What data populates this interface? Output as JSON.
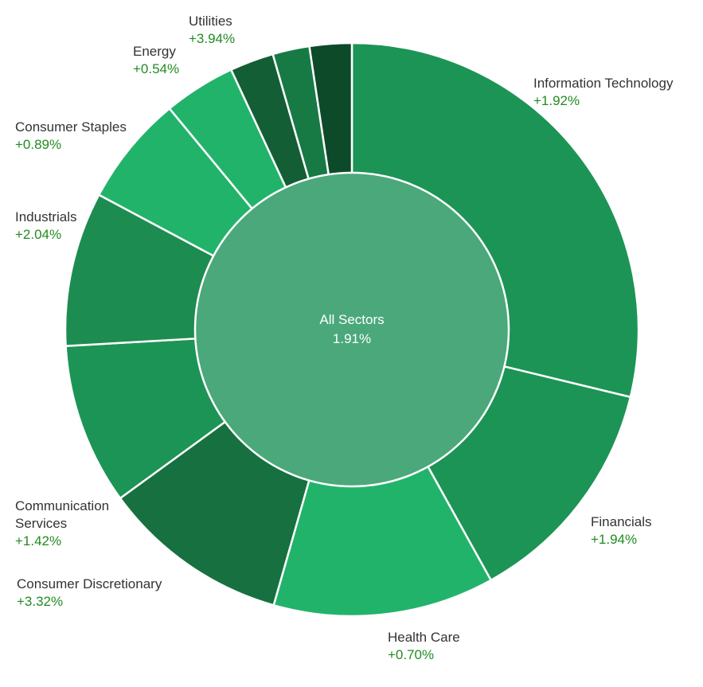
{
  "chart_data": {
    "type": "pie",
    "title": "",
    "center": {
      "label": "All Sectors",
      "value": "1.91%",
      "color": "#4aa87a"
    },
    "positive_color": "#228b22",
    "sectors": [
      {
        "name": "Information Technology",
        "lines": [
          "Information Technology"
        ],
        "change": "+1.92%",
        "weight": 29.1,
        "color": "#1c9455"
      },
      {
        "name": "Financials",
        "lines": [
          "Financials"
        ],
        "change": "+1.94%",
        "weight": 13.3,
        "color": "#1c9455"
      },
      {
        "name": "Health Care",
        "lines": [
          "Health Care"
        ],
        "change": "+0.70%",
        "weight": 12.6,
        "color": "#22b36b"
      },
      {
        "name": "Consumer Discretionary",
        "lines": [
          "Consumer Discretionary"
        ],
        "change": "+3.32%",
        "weight": 10.7,
        "color": "#17703f"
      },
      {
        "name": "Communication Services",
        "lines": [
          "Communication",
          "Services"
        ],
        "change": "+1.42%",
        "weight": 9.2,
        "color": "#1c9455"
      },
      {
        "name": "Industrials",
        "lines": [
          "Industrials"
        ],
        "change": "+2.04%",
        "weight": 8.8,
        "color": "#1d8c50"
      },
      {
        "name": "Consumer Staples",
        "lines": [
          "Consumer Staples"
        ],
        "change": "+0.89%",
        "weight": 6.3,
        "color": "#22b36b"
      },
      {
        "name": "Energy",
        "lines": [
          "Energy"
        ],
        "change": "+0.54%",
        "weight": 4.1,
        "color": "#22b36b"
      },
      {
        "name": "Utilities",
        "lines": [
          "Utilities"
        ],
        "change": "+3.94%",
        "weight": 2.5,
        "color": "#145e35"
      },
      {
        "name": "",
        "lines": [],
        "change": "",
        "weight": 2.1,
        "color": "#177a45"
      },
      {
        "name": "",
        "lines": [],
        "change": "",
        "weight": 2.4,
        "color": "#0d4a2a"
      }
    ]
  }
}
